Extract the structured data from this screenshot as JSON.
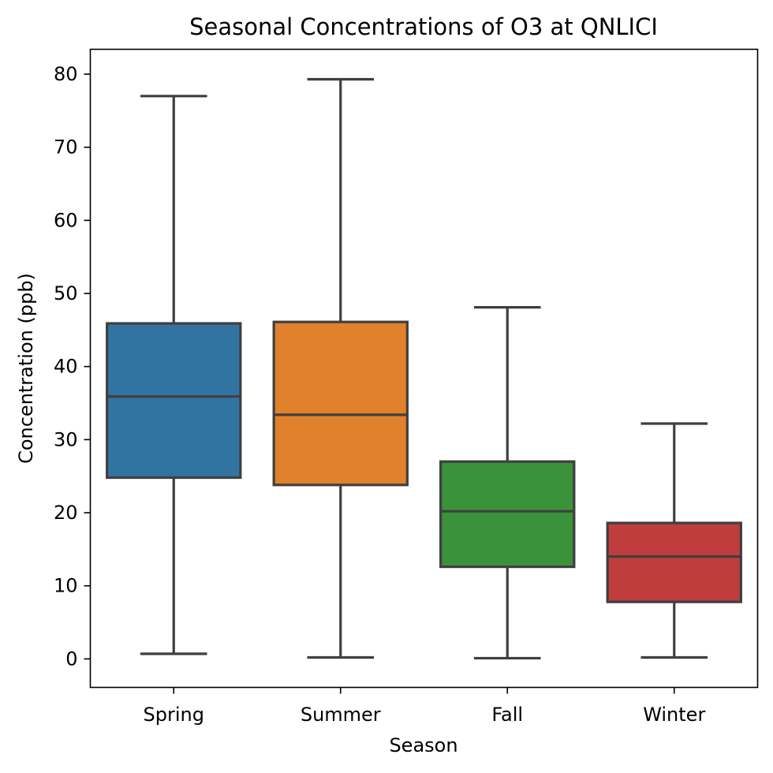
{
  "chart_data": {
    "type": "box",
    "title": "Seasonal Concentrations of O3 at QNLICI",
    "xlabel": "Season",
    "ylabel": "Concentration (ppb)",
    "ylim": [
      -3.9,
      83.4
    ],
    "yticks": [
      0,
      10,
      20,
      30,
      40,
      50,
      60,
      70,
      80
    ],
    "grid": false,
    "categories": [
      "Spring",
      "Summer",
      "Fall",
      "Winter"
    ],
    "boxes": [
      {
        "category": "Spring",
        "whisker_low": 0.7,
        "q1": 24.8,
        "median": 35.9,
        "q3": 45.9,
        "whisker_high": 77.0,
        "color": "#3274a1"
      },
      {
        "category": "Summer",
        "whisker_low": 0.2,
        "q1": 23.8,
        "median": 33.4,
        "q3": 46.1,
        "whisker_high": 79.3,
        "color": "#e1812c"
      },
      {
        "category": "Fall",
        "whisker_low": 0.1,
        "q1": 12.6,
        "median": 20.2,
        "q3": 27.0,
        "whisker_high": 48.1,
        "color": "#3a923a"
      },
      {
        "category": "Winter",
        "whisker_low": 0.2,
        "q1": 7.8,
        "median": 14.0,
        "q3": 18.6,
        "whisker_high": 32.2,
        "color": "#c03d3e"
      }
    ]
  }
}
